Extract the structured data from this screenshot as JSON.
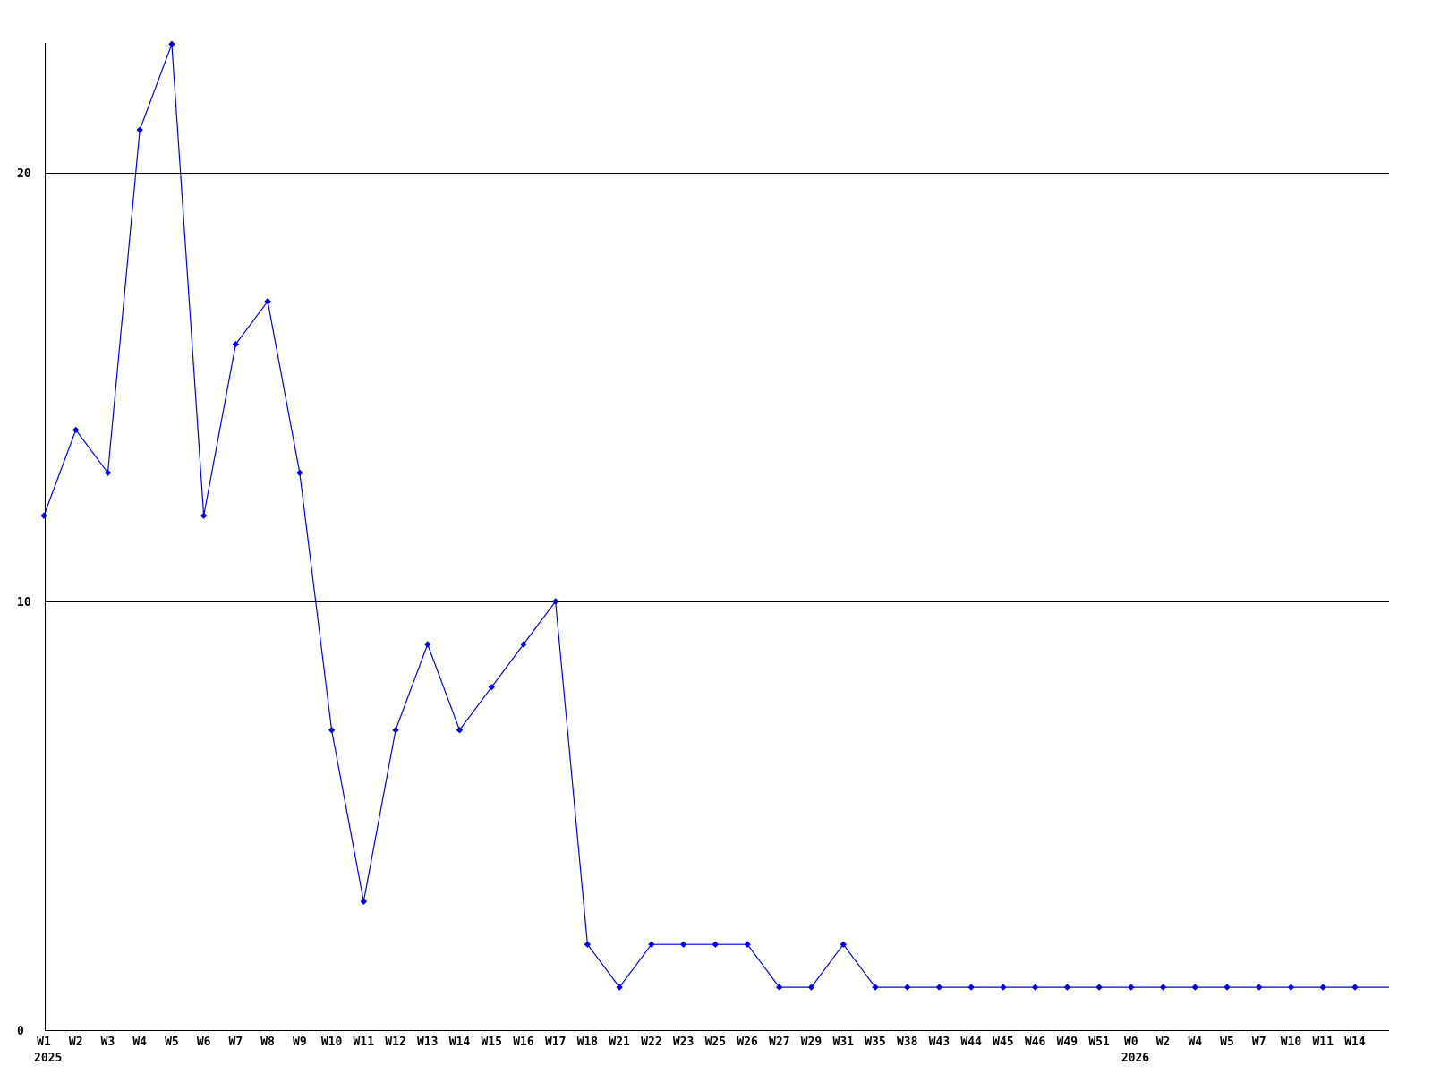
{
  "chart_data": {
    "type": "line",
    "title": "",
    "xlabel": "",
    "ylabel": "",
    "x_labels": [
      "W1",
      "W2",
      "W3",
      "W4",
      "W5",
      "W6",
      "W7",
      "W8",
      "W9",
      "W10",
      "W11",
      "W12",
      "W13",
      "W14",
      "W15",
      "W16",
      "W17",
      "W18",
      "W21",
      "W22",
      "W23",
      "W25",
      "W26",
      "W27",
      "W29",
      "W31",
      "W35",
      "W38",
      "W43",
      "W44",
      "W45",
      "W46",
      "W49",
      "W51",
      "W0",
      "W2",
      "W4",
      "W5",
      "W7",
      "W10",
      "W11",
      "W14"
    ],
    "values": [
      12,
      14,
      13,
      21,
      23,
      12,
      16,
      17,
      13,
      7,
      3,
      7,
      9,
      7,
      8,
      9,
      10,
      2,
      1,
      2,
      2,
      2,
      2,
      1,
      1,
      2,
      1,
      1,
      1,
      1,
      1,
      1,
      1,
      1,
      1,
      1,
      1,
      1,
      1,
      1,
      1,
      1
    ],
    "year_annotations": [
      {
        "index": 0,
        "label": "2025"
      },
      {
        "index": 34,
        "label": "2026"
      }
    ],
    "y_ticks": [
      0,
      10,
      20
    ],
    "ylim": [
      0,
      23.1
    ],
    "grid": "horizontal",
    "legend": "none",
    "line_color": "#0000ee",
    "axis_color": "#000000",
    "text_color": "#000000",
    "background_color": "#ffffff",
    "marker": "diamond",
    "line_extends_to_right_edge": true
  }
}
